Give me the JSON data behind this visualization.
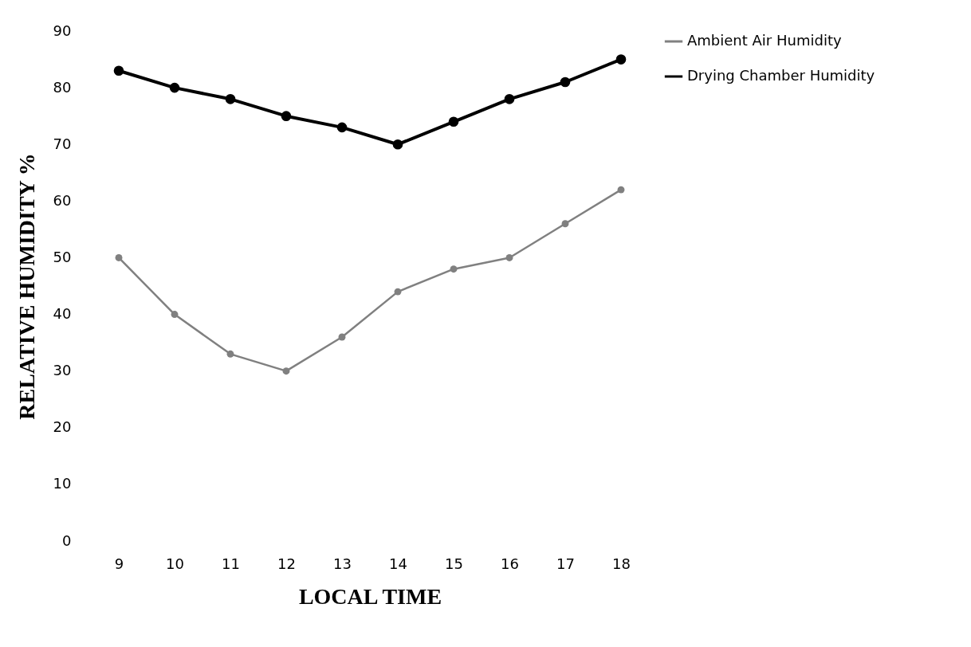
{
  "chart_data": {
    "type": "line",
    "xlabel": "LOCAL TIME",
    "ylabel": "RELATIVE HUMIDITY %",
    "categories": [
      "9",
      "10",
      "11",
      "12",
      "13",
      "14",
      "15",
      "16",
      "17",
      "18"
    ],
    "series": [
      {
        "name": "Ambient Air Humidity",
        "color": "#808080",
        "values": [
          50,
          40,
          33,
          30,
          36,
          44,
          48,
          50,
          56,
          62
        ]
      },
      {
        "name": "Drying Chamber Humidity",
        "color": "#000000",
        "values": [
          83,
          80,
          78,
          75,
          73,
          70,
          74,
          78,
          81,
          85
        ]
      }
    ],
    "ylim": [
      0,
      90
    ],
    "yticks": [
      0,
      10,
      20,
      30,
      40,
      50,
      60,
      70,
      80,
      90
    ],
    "grid": false,
    "legend": "right",
    "marker": "circle",
    "line_style": "solid"
  }
}
